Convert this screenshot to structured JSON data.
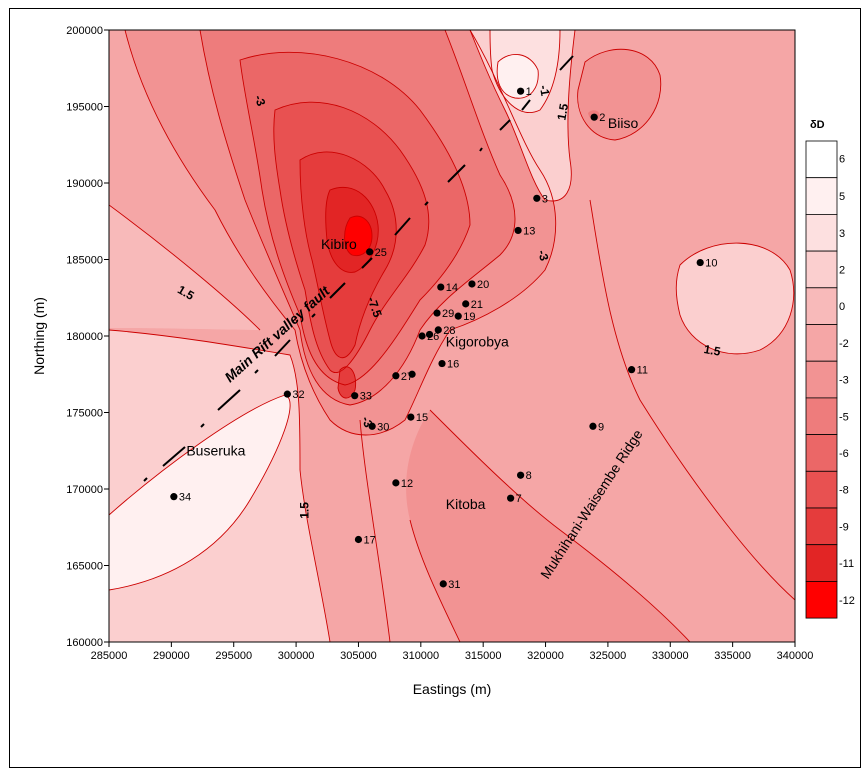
{
  "chart_data": {
    "type": "contour",
    "xlabel": "Eastings (m)",
    "ylabel": "Northing (m)",
    "xlim": [
      285000,
      340000
    ],
    "ylim": [
      160000,
      200000
    ],
    "x_ticks": [
      "285000",
      "290000",
      "295000",
      "300000",
      "305000",
      "310000",
      "315000",
      "320000",
      "325000",
      "330000",
      "335000",
      "340000"
    ],
    "y_ticks": [
      "160000",
      "165000",
      "170000",
      "175000",
      "180000",
      "185000",
      "190000",
      "195000",
      "200000"
    ],
    "colorbar": {
      "title": "δD",
      "levels": [
        "6",
        "5",
        "3",
        "2",
        "0",
        "-2",
        "-3",
        "-5",
        "-6",
        "-8",
        "-9",
        "-11",
        "-12"
      ],
      "colors": [
        "#ffffff",
        "#fff0f0",
        "#fde0e0",
        "#fbcfcf",
        "#f8baba",
        "#f5a6a6",
        "#f29393",
        "#ee7c7c",
        "#eb6767",
        "#e85151",
        "#e53c3c",
        "#e22525",
        "#ff0000"
      ]
    },
    "contour_labels": [
      {
        "text": "-3",
        "x": 296800,
        "y": 195300,
        "rot": 70
      },
      {
        "text": "-1",
        "x": 319600,
        "y": 196000,
        "rot": 80
      },
      {
        "text": "1.5",
        "x": 321700,
        "y": 194600,
        "rot": -80
      },
      {
        "text": "1.5",
        "x": 291000,
        "y": 182600,
        "rot": 30
      },
      {
        "text": "-7.5",
        "x": 306000,
        "y": 181800,
        "rot": 70
      },
      {
        "text": "-3",
        "x": 319500,
        "y": 185200,
        "rot": 75
      },
      {
        "text": "1.5",
        "x": 333300,
        "y": 178800,
        "rot": 10
      },
      {
        "text": "-3",
        "x": 305400,
        "y": 174300,
        "rot": 70
      },
      {
        "text": "1.5",
        "x": 301000,
        "y": 168600,
        "rot": -90
      }
    ],
    "sampling_sites": [
      {
        "id": "1",
        "x": 318000,
        "y": 196000
      },
      {
        "id": "2",
        "x": 323900,
        "y": 194300
      },
      {
        "id": "3",
        "x": 319300,
        "y": 189000
      },
      {
        "id": "7",
        "x": 317200,
        "y": 169400
      },
      {
        "id": "8",
        "x": 318000,
        "y": 170900
      },
      {
        "id": "9",
        "x": 323800,
        "y": 174100
      },
      {
        "id": "10",
        "x": 332400,
        "y": 184800
      },
      {
        "id": "11",
        "x": 326900,
        "y": 177800
      },
      {
        "id": "12",
        "x": 308000,
        "y": 170400
      },
      {
        "id": "13",
        "x": 317800,
        "y": 186900
      },
      {
        "id": "14",
        "x": 311600,
        "y": 183200
      },
      {
        "id": "15",
        "x": 309200,
        "y": 174700
      },
      {
        "id": "16",
        "x": 311700,
        "y": 178200
      },
      {
        "id": "17",
        "x": 305000,
        "y": 166700
      },
      {
        "id": "19",
        "x": 313000,
        "y": 181300
      },
      {
        "id": "20",
        "x": 314100,
        "y": 183400
      },
      {
        "id": "21",
        "x": 313600,
        "y": 182100
      },
      {
        "id": "26",
        "x": 310100,
        "y": 180000
      },
      {
        "id": "27",
        "x": 308000,
        "y": 177400
      },
      {
        "id": "28",
        "x": 311400,
        "y": 180400
      },
      {
        "id": "29",
        "x": 311300,
        "y": 181500
      },
      {
        "id": "30",
        "x": 306100,
        "y": 174100
      },
      {
        "id": "31",
        "x": 311800,
        "y": 163800
      },
      {
        "id": "32",
        "x": 299300,
        "y": 176200
      },
      {
        "id": "33",
        "x": 304700,
        "y": 176100
      },
      {
        "id": "34",
        "x": 290200,
        "y": 169500
      }
    ],
    "site_25": {
      "id": "25",
      "x": 305900,
      "y": 185500
    },
    "extra_points": [
      {
        "x": 310700,
        "y": 180100
      },
      {
        "x": 309300,
        "y": 177500
      }
    ],
    "place_names": [
      {
        "name": "Biiso",
        "x": 325000,
        "y": 193600
      },
      {
        "name": "Kibiro",
        "x": 302000,
        "y": 185700
      },
      {
        "name": "Kigorobya",
        "x": 312000,
        "y": 179300
      },
      {
        "name": "Buseruka",
        "x": 291200,
        "y": 172200
      },
      {
        "name": "Kitoba",
        "x": 312000,
        "y": 168700
      }
    ],
    "annotations": {
      "fault": "Main Rift valley fault",
      "ridge": "Mukhihani-Waisembe Ridge"
    }
  }
}
